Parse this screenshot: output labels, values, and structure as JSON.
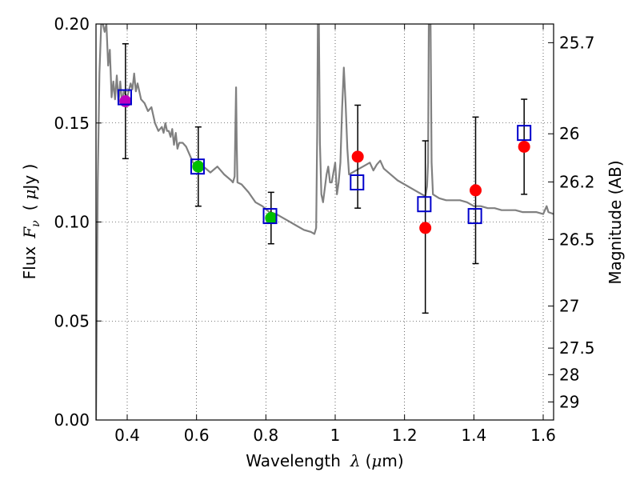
{
  "chart_data": {
    "type": "scatter",
    "xlabel": "Wavelength",
    "xlabel_symbol": "λ",
    "xlabel_unit_open": "(",
    "xlabel_unit_mu": "μ",
    "xlabel_unit_rest": "m)",
    "ylabel": "Flux",
    "ylabel_symbol_F": "F",
    "ylabel_symbol_sub": "ν",
    "ylabel_unit_open": "(",
    "ylabel_unit_mu": "μ",
    "ylabel_unit_rest": "Jy )",
    "y2label": "Magnitude (AB)",
    "xlim": [
      0.31,
      1.63
    ],
    "ylim": [
      0.0,
      0.2
    ],
    "grid": true,
    "x_ticks": [
      "0.4",
      "0.6",
      "0.8",
      "1",
      "1.2",
      "1.4",
      "1.6"
    ],
    "x_tick_values": [
      0.4,
      0.6,
      0.8,
      1.0,
      1.2,
      1.4,
      1.6
    ],
    "y_ticks": [
      "0.00",
      "0.05",
      "0.10",
      "0.15",
      "0.20"
    ],
    "y_tick_values": [
      0.0,
      0.05,
      0.1,
      0.15,
      0.2
    ],
    "mag_ticks": [
      "25.7",
      "26",
      "26.2",
      "26.5",
      "27",
      "27.5",
      "28",
      "29"
    ],
    "mag_tick_values": [
      25.7,
      26.0,
      26.2,
      26.5,
      27.0,
      27.5,
      28.0,
      29.0
    ],
    "colors": {
      "model": "#808080",
      "errorbar": "#000000",
      "model_box": "#0000cc",
      "magenta": "#bf00bf",
      "green": "#00bf00",
      "red": "#ff0000"
    },
    "photometry": [
      {
        "x": 0.395,
        "y": 0.161,
        "err_lo": 0.132,
        "err_hi": 0.19,
        "color": "magenta"
      },
      {
        "x": 0.605,
        "y": 0.128,
        "err_lo": 0.108,
        "err_hi": 0.148,
        "color": "green"
      },
      {
        "x": 0.815,
        "y": 0.102,
        "err_lo": 0.089,
        "err_hi": 0.115,
        "color": "green"
      },
      {
        "x": 1.065,
        "y": 0.133,
        "err_lo": 0.107,
        "err_hi": 0.159,
        "color": "red"
      },
      {
        "x": 1.26,
        "y": 0.097,
        "err_lo": 0.054,
        "err_hi": 0.141,
        "color": "red"
      },
      {
        "x": 1.405,
        "y": 0.116,
        "err_lo": 0.079,
        "err_hi": 0.153,
        "color": "red"
      },
      {
        "x": 1.545,
        "y": 0.138,
        "err_lo": 0.114,
        "err_hi": 0.162,
        "color": "red"
      }
    ],
    "model_points": [
      {
        "x": 0.393,
        "y": 0.163
      },
      {
        "x": 0.603,
        "y": 0.128
      },
      {
        "x": 0.812,
        "y": 0.103
      },
      {
        "x": 1.063,
        "y": 0.12
      },
      {
        "x": 1.257,
        "y": 0.109
      },
      {
        "x": 1.403,
        "y": 0.103
      },
      {
        "x": 1.545,
        "y": 0.145
      }
    ],
    "model_spectrum": [
      [
        0.31,
        0.0
      ],
      [
        0.315,
        0.12
      ],
      [
        0.32,
        0.175
      ],
      [
        0.325,
        0.2
      ],
      [
        0.33,
        0.2
      ],
      [
        0.335,
        0.196
      ],
      [
        0.34,
        0.2
      ],
      [
        0.345,
        0.179
      ],
      [
        0.35,
        0.187
      ],
      [
        0.355,
        0.163
      ],
      [
        0.36,
        0.171
      ],
      [
        0.365,
        0.162
      ],
      [
        0.37,
        0.174
      ],
      [
        0.375,
        0.16
      ],
      [
        0.38,
        0.171
      ],
      [
        0.385,
        0.16
      ],
      [
        0.39,
        0.166
      ],
      [
        0.4,
        0.163
      ],
      [
        0.41,
        0.17
      ],
      [
        0.415,
        0.167
      ],
      [
        0.42,
        0.175
      ],
      [
        0.425,
        0.166
      ],
      [
        0.43,
        0.17
      ],
      [
        0.44,
        0.162
      ],
      [
        0.45,
        0.16
      ],
      [
        0.46,
        0.156
      ],
      [
        0.47,
        0.158
      ],
      [
        0.48,
        0.15
      ],
      [
        0.49,
        0.146
      ],
      [
        0.5,
        0.148
      ],
      [
        0.505,
        0.145
      ],
      [
        0.51,
        0.15
      ],
      [
        0.515,
        0.146
      ],
      [
        0.52,
        0.146
      ],
      [
        0.525,
        0.143
      ],
      [
        0.53,
        0.147
      ],
      [
        0.535,
        0.139
      ],
      [
        0.54,
        0.145
      ],
      [
        0.545,
        0.137
      ],
      [
        0.55,
        0.14
      ],
      [
        0.56,
        0.14
      ],
      [
        0.57,
        0.138
      ],
      [
        0.58,
        0.134
      ],
      [
        0.59,
        0.13
      ],
      [
        0.6,
        0.128
      ],
      [
        0.62,
        0.128
      ],
      [
        0.64,
        0.125
      ],
      [
        0.66,
        0.128
      ],
      [
        0.68,
        0.124
      ],
      [
        0.7,
        0.121
      ],
      [
        0.705,
        0.12
      ],
      [
        0.71,
        0.123
      ],
      [
        0.712,
        0.147
      ],
      [
        0.714,
        0.168
      ],
      [
        0.716,
        0.14
      ],
      [
        0.718,
        0.12
      ],
      [
        0.73,
        0.119
      ],
      [
        0.75,
        0.115
      ],
      [
        0.77,
        0.11
      ],
      [
        0.79,
        0.108
      ],
      [
        0.81,
        0.105
      ],
      [
        0.83,
        0.104
      ],
      [
        0.85,
        0.102
      ],
      [
        0.87,
        0.1
      ],
      [
        0.89,
        0.098
      ],
      [
        0.91,
        0.096
      ],
      [
        0.93,
        0.095
      ],
      [
        0.94,
        0.094
      ],
      [
        0.945,
        0.097
      ],
      [
        0.948,
        0.145
      ],
      [
        0.95,
        0.2
      ],
      [
        0.953,
        0.2
      ],
      [
        0.956,
        0.14
      ],
      [
        0.96,
        0.114
      ],
      [
        0.965,
        0.11
      ],
      [
        0.97,
        0.117
      ],
      [
        0.975,
        0.124
      ],
      [
        0.98,
        0.128
      ],
      [
        0.985,
        0.12
      ],
      [
        0.99,
        0.12
      ],
      [
        0.995,
        0.125
      ],
      [
        1.0,
        0.13
      ],
      [
        1.005,
        0.114
      ],
      [
        1.01,
        0.12
      ],
      [
        1.015,
        0.13
      ],
      [
        1.02,
        0.158
      ],
      [
        1.025,
        0.178
      ],
      [
        1.03,
        0.16
      ],
      [
        1.035,
        0.137
      ],
      [
        1.04,
        0.124
      ],
      [
        1.06,
        0.126
      ],
      [
        1.08,
        0.128
      ],
      [
        1.1,
        0.13
      ],
      [
        1.11,
        0.126
      ],
      [
        1.12,
        0.129
      ],
      [
        1.13,
        0.131
      ],
      [
        1.14,
        0.127
      ],
      [
        1.16,
        0.124
      ],
      [
        1.18,
        0.121
      ],
      [
        1.2,
        0.119
      ],
      [
        1.22,
        0.117
      ],
      [
        1.24,
        0.115
      ],
      [
        1.26,
        0.113
      ],
      [
        1.265,
        0.118
      ],
      [
        1.268,
        0.13
      ],
      [
        1.27,
        0.2
      ],
      [
        1.275,
        0.2
      ],
      [
        1.278,
        0.13
      ],
      [
        1.282,
        0.114
      ],
      [
        1.3,
        0.112
      ],
      [
        1.32,
        0.111
      ],
      [
        1.34,
        0.111
      ],
      [
        1.36,
        0.111
      ],
      [
        1.38,
        0.11
      ],
      [
        1.4,
        0.108
      ],
      [
        1.42,
        0.108
      ],
      [
        1.44,
        0.107
      ],
      [
        1.46,
        0.107
      ],
      [
        1.48,
        0.106
      ],
      [
        1.5,
        0.106
      ],
      [
        1.52,
        0.106
      ],
      [
        1.54,
        0.105
      ],
      [
        1.56,
        0.105
      ],
      [
        1.58,
        0.105
      ],
      [
        1.6,
        0.104
      ],
      [
        1.61,
        0.108
      ],
      [
        1.615,
        0.105
      ],
      [
        1.63,
        0.104
      ]
    ]
  }
}
